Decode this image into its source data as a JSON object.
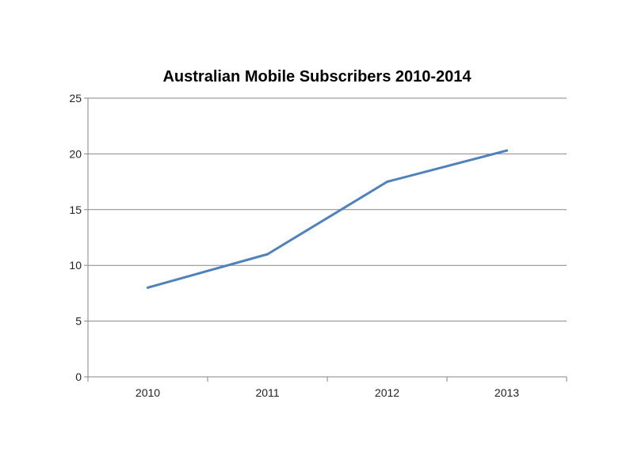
{
  "chart_data": {
    "type": "line",
    "title": "Australian Mobile Subscribers 2010-2014",
    "xlabel": "",
    "ylabel": "",
    "categories": [
      "2010",
      "2011",
      "2012",
      "2013"
    ],
    "series": [
      {
        "values": [
          8,
          11,
          17.5,
          20.3
        ]
      }
    ],
    "ylim": [
      0,
      25
    ],
    "yticks": [
      0,
      5,
      10,
      15,
      20,
      25
    ],
    "grid": true,
    "legend": "none",
    "colors": {
      "line": "#4f81bd",
      "grid": "#868686",
      "axis": "#868686"
    }
  }
}
